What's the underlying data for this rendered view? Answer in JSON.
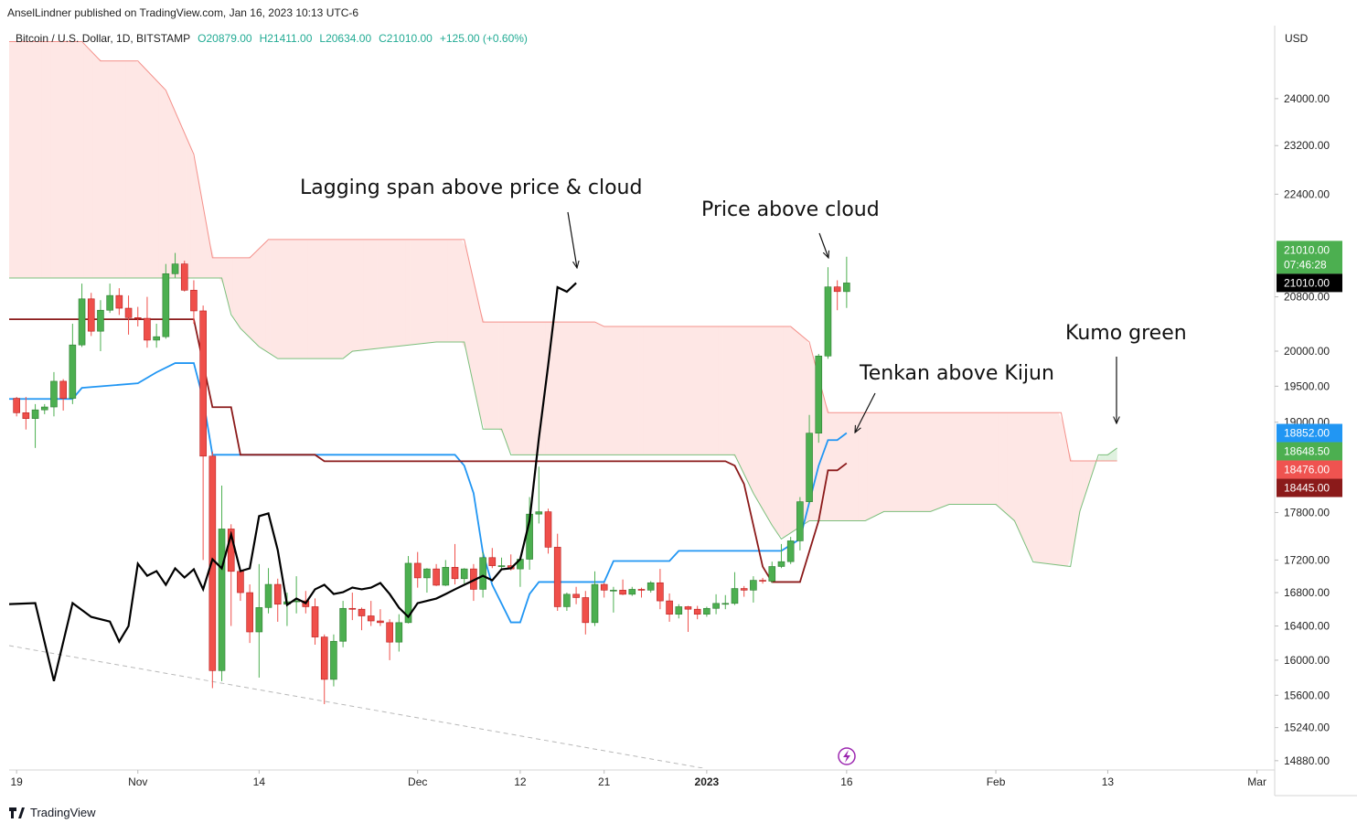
{
  "chart_data": {
    "type": "candlestick",
    "header": "AnselLindner published on TradingView.com, Jan 16, 2023 10:13 UTC-6",
    "symbol": "Bitcoin / U.S. Dollar, 1D, BITSTAMP",
    "ohlc_legend": [
      "O20879.00",
      "H21411.00",
      "L20634.00",
      "C21010.00",
      "+125.00 (+0.60%)"
    ],
    "currency": "USD",
    "footer": "TradingView",
    "log_scale": true,
    "grid": false,
    "xlim": [
      -0.8,
      134.9
    ],
    "ylim": [
      14800,
      25300
    ],
    "xticks": [
      {
        "value": 0,
        "label": "19"
      },
      {
        "value": 13,
        "label": "Nov"
      },
      {
        "value": 26,
        "label": "14"
      },
      {
        "value": 43,
        "label": "Dec"
      },
      {
        "value": 54,
        "label": "12"
      },
      {
        "value": 63,
        "label": "21"
      },
      {
        "value": 74,
        "label": "2023"
      },
      {
        "value": 89,
        "label": "16"
      },
      {
        "value": 105,
        "label": "Feb"
      },
      {
        "value": 117,
        "label": "13"
      },
      {
        "value": 133,
        "label": "Mar"
      }
    ],
    "yticks": [
      {
        "value": 24000,
        "label": "24000.00"
      },
      {
        "value": 23200,
        "label": "23200.00"
      },
      {
        "value": 22400,
        "label": "22400.00"
      },
      {
        "value": 20800,
        "label": "20800.00"
      },
      {
        "value": 20000,
        "label": "20000.00"
      },
      {
        "value": 19500,
        "label": "19500.00"
      },
      {
        "value": 19000,
        "label": "19000.00"
      },
      {
        "value": 17800,
        "label": "17800.00"
      },
      {
        "value": 17200,
        "label": "17200.00"
      },
      {
        "value": 16800,
        "label": "16800.00"
      },
      {
        "value": 16400,
        "label": "16400.00"
      },
      {
        "value": 16000,
        "label": "16000.00"
      },
      {
        "value": 15600,
        "label": "15600.00"
      },
      {
        "value": 15240,
        "label": "15240.00"
      },
      {
        "value": 14880,
        "label": "14880.00"
      }
    ],
    "candles": {
      "up_color": "#4caf50",
      "down_color": "#ef4f4a",
      "x": [
        0,
        1,
        2,
        3,
        4,
        5,
        6,
        7,
        8,
        9,
        10,
        11,
        12,
        13,
        14,
        15,
        16,
        17,
        18,
        19,
        20,
        21,
        22,
        23,
        24,
        25,
        26,
        27,
        28,
        29,
        30,
        31,
        32,
        33,
        34,
        35,
        36,
        37,
        38,
        39,
        40,
        41,
        42,
        43,
        44,
        45,
        46,
        47,
        48,
        49,
        50,
        51,
        52,
        53,
        54,
        55,
        56,
        57,
        58,
        59,
        60,
        61,
        62,
        63,
        64,
        65,
        66,
        67,
        68,
        69,
        70,
        71,
        72,
        73,
        74,
        75,
        76,
        77,
        78,
        79,
        80,
        81,
        82,
        83,
        84,
        85,
        86,
        87,
        88,
        89
      ],
      "open": [
        19330,
        19130,
        19050,
        19170,
        19210,
        19570,
        19330,
        20090,
        20770,
        20290,
        20600,
        20820,
        20630,
        20490,
        20480,
        20160,
        20210,
        21150,
        21300,
        20900,
        20590,
        18540,
        15880,
        17590,
        17060,
        16800,
        16330,
        16620,
        16900,
        16660,
        16690,
        16700,
        16630,
        16270,
        15780,
        16220,
        16610,
        16600,
        16520,
        16460,
        16440,
        16210,
        16440,
        17160,
        16980,
        17090,
        16890,
        17110,
        16970,
        17090,
        16840,
        17230,
        17130,
        17130,
        17090,
        17210,
        17780,
        17810,
        17360,
        16630,
        16780,
        16740,
        16440,
        16900,
        16830,
        16830,
        16780,
        16840,
        16830,
        16920,
        16700,
        16540,
        16630,
        16600,
        16540,
        16610,
        16670,
        16670,
        16850,
        16830,
        16950,
        16940,
        17120,
        17180,
        17440,
        17940,
        18850,
        19930,
        20950,
        20879
      ],
      "high": [
        19350,
        19350,
        19250,
        19250,
        19700,
        19600,
        20400,
        21000,
        20860,
        20750,
        21000,
        20930,
        20820,
        20650,
        20800,
        20400,
        21300,
        21470,
        21350,
        21050,
        20670,
        18600,
        18150,
        17650,
        17070,
        16900,
        17150,
        17100,
        16970,
        16800,
        17000,
        16820,
        16730,
        16300,
        16300,
        16700,
        16800,
        16620,
        16700,
        16600,
        16480,
        16540,
        17250,
        17300,
        17100,
        17150,
        17200,
        17400,
        17100,
        17150,
        17300,
        17350,
        17230,
        17270,
        17240,
        18000,
        18400,
        17850,
        17530,
        16800,
        16870,
        16820,
        17060,
        16920,
        16870,
        16960,
        16870,
        16860,
        16940,
        17090,
        16790,
        16660,
        16640,
        16640,
        16630,
        16780,
        16770,
        17050,
        16880,
        17000,
        16980,
        17180,
        17400,
        17490,
        18000,
        19100,
        19960,
        21250,
        21050,
        21411
      ],
      "low": [
        19080,
        18900,
        18650,
        19110,
        19080,
        19160,
        19250,
        20060,
        20220,
        20000,
        20560,
        20530,
        20240,
        20360,
        20050,
        20050,
        20180,
        21090,
        20880,
        20400,
        17200,
        15680,
        15760,
        16400,
        16700,
        16200,
        15800,
        16550,
        16450,
        16400,
        16550,
        16550,
        16180,
        15500,
        15700,
        16150,
        16470,
        16350,
        16400,
        16400,
        16000,
        16100,
        16430,
        16860,
        16800,
        16880,
        16880,
        16900,
        16910,
        16700,
        16740,
        17100,
        17090,
        17070,
        16870,
        17080,
        17660,
        17280,
        16580,
        16580,
        16660,
        16300,
        16400,
        16740,
        16560,
        16770,
        16760,
        16740,
        16800,
        16600,
        16450,
        16490,
        16330,
        16480,
        16510,
        16540,
        16600,
        16650,
        16750,
        16680,
        16910,
        16920,
        17100,
        17150,
        17320,
        17920,
        18720,
        19890,
        20600,
        20634
      ],
      "close": [
        19130,
        19050,
        19170,
        19210,
        19570,
        19330,
        20090,
        20770,
        20290,
        20600,
        20820,
        20630,
        20490,
        20480,
        20160,
        20210,
        21150,
        21300,
        20900,
        20590,
        18540,
        15880,
        17590,
        17060,
        16800,
        16330,
        16620,
        16900,
        16660,
        16690,
        16700,
        16630,
        16270,
        15780,
        16220,
        16610,
        16600,
        16520,
        16460,
        16440,
        16210,
        16440,
        17160,
        16980,
        17090,
        16890,
        17110,
        16970,
        17090,
        16840,
        17230,
        17130,
        17130,
        17090,
        17210,
        17780,
        17810,
        17360,
        16630,
        16780,
        16740,
        16440,
        16900,
        16830,
        16830,
        16780,
        16840,
        16830,
        16920,
        16700,
        16540,
        16630,
        16600,
        16540,
        16610,
        16670,
        16670,
        16850,
        16830,
        16950,
        16940,
        17120,
        17180,
        17440,
        17940,
        18850,
        19930,
        20950,
        20880,
        21010
      ]
    },
    "cloud": {
      "up_fill": "rgba(76,175,80,0.18)",
      "down_fill": "rgba(244,67,54,0.13)",
      "span_a": {
        "color": "#7cbf7c",
        "x": [
          -0.8,
          22,
          23,
          24,
          26,
          28,
          35,
          36,
          45,
          48,
          50,
          52,
          53,
          77,
          79,
          81,
          82,
          85,
          91,
          93,
          98,
          100,
          105,
          107,
          109,
          113,
          114,
          116,
          117,
          118
        ],
        "values": [
          21085,
          21085,
          20535,
          20332,
          20064,
          19893,
          19893,
          19999,
          20132,
          20132,
          18905,
          18905,
          18558,
          18558,
          18050,
          17637,
          17463,
          17695,
          17695,
          17813,
          17813,
          17906,
          17906,
          17695,
          17176,
          17119,
          17813,
          18558,
          18558,
          18648.5
        ]
      },
      "span_b": {
        "color": "#f4908a",
        "x": [
          -0.8,
          7,
          9,
          13,
          16,
          19,
          21,
          25,
          27,
          48,
          50,
          62,
          63,
          83,
          85,
          87,
          112,
          113,
          118
        ],
        "values": [
          25010,
          25010,
          24663,
          24663,
          24146,
          23054,
          21395,
          21395,
          21679,
          21679,
          20426,
          20426,
          20359,
          20359,
          20132,
          19131,
          19131,
          18476,
          18476
        ]
      }
    },
    "lines": [
      {
        "color": "#2196f3",
        "x": [
          -0.8,
          6,
          7,
          13,
          15,
          17,
          19,
          20,
          21,
          47,
          48,
          49,
          50,
          51,
          53,
          54,
          55,
          56,
          63,
          64,
          70,
          71,
          82,
          84,
          86,
          87,
          88,
          89
        ],
        "values": [
          19322,
          19322,
          19477,
          19541,
          19697,
          19828,
          19828,
          19322,
          18558,
          18558,
          18413,
          18050,
          17291,
          16895,
          16443,
          16443,
          16783,
          16929,
          16929,
          17188,
          17188,
          17314,
          17314,
          17463,
          18413,
          18756,
          18756,
          18852
        ]
      },
      {
        "color": "#8b1a1a",
        "x": [
          -0.8,
          19,
          20,
          21,
          23,
          24,
          32,
          33,
          76,
          77,
          78,
          80,
          81,
          84,
          86,
          87,
          88,
          89
        ],
        "values": [
          20466,
          20466,
          19828,
          19207,
          19207,
          18558,
          18558,
          18472,
          18472,
          18413,
          18170,
          17119,
          16929,
          16929,
          17695,
          18351,
          18351,
          18445
        ]
      },
      {
        "color": "#000000",
        "x": [
          -0.8,
          2,
          4,
          6,
          8,
          10,
          11,
          12,
          13,
          14,
          15,
          16,
          17,
          18,
          19,
          20,
          21,
          22,
          23,
          24,
          25,
          26,
          27,
          28,
          29,
          30,
          31,
          32,
          33,
          34,
          35,
          36,
          37,
          38,
          39,
          40,
          41,
          42,
          43,
          44,
          45,
          46,
          47,
          48,
          49,
          50,
          51,
          52,
          53,
          54,
          55,
          56,
          57,
          58,
          59,
          60
        ],
        "values": [
          16661,
          16673,
          15761,
          16673,
          16508,
          16453,
          16216,
          16399,
          17154,
          17006,
          17063,
          16895,
          17097,
          16984,
          17085,
          16840,
          17210,
          17097,
          17521,
          17063,
          17097,
          17754,
          17789,
          17325,
          16651,
          16728,
          16673,
          16840,
          16895,
          16783,
          16805,
          16861,
          16840,
          16861,
          16917,
          16783,
          16618,
          16508,
          16673,
          16700,
          16728,
          16783,
          16840,
          16895,
          16950,
          17006,
          16950,
          17085,
          17097,
          17210,
          17695,
          18780,
          19801,
          20945,
          20877,
          21010
        ]
      }
    ],
    "price_labels": [
      {
        "value": 21010,
        "label": "21010.00",
        "sub": "07:46:28",
        "color": "#4caf50"
      },
      {
        "value": 21010,
        "label": "21010.00",
        "color": "#000000"
      },
      {
        "value": 18852,
        "label": "18852.00",
        "color": "#2196f3"
      },
      {
        "value": 18648.5,
        "label": "18648.50",
        "color": "#4caf50"
      },
      {
        "value": 18476,
        "label": "18476.00",
        "color": "#ef5350"
      },
      {
        "value": 18445,
        "label": "18445.00",
        "color": "#8b1a1a"
      }
    ],
    "annotations": [
      "Lagging span above price & cloud",
      "Price above cloud",
      "Kumo green",
      "Tenkan above Kijun"
    ]
  }
}
